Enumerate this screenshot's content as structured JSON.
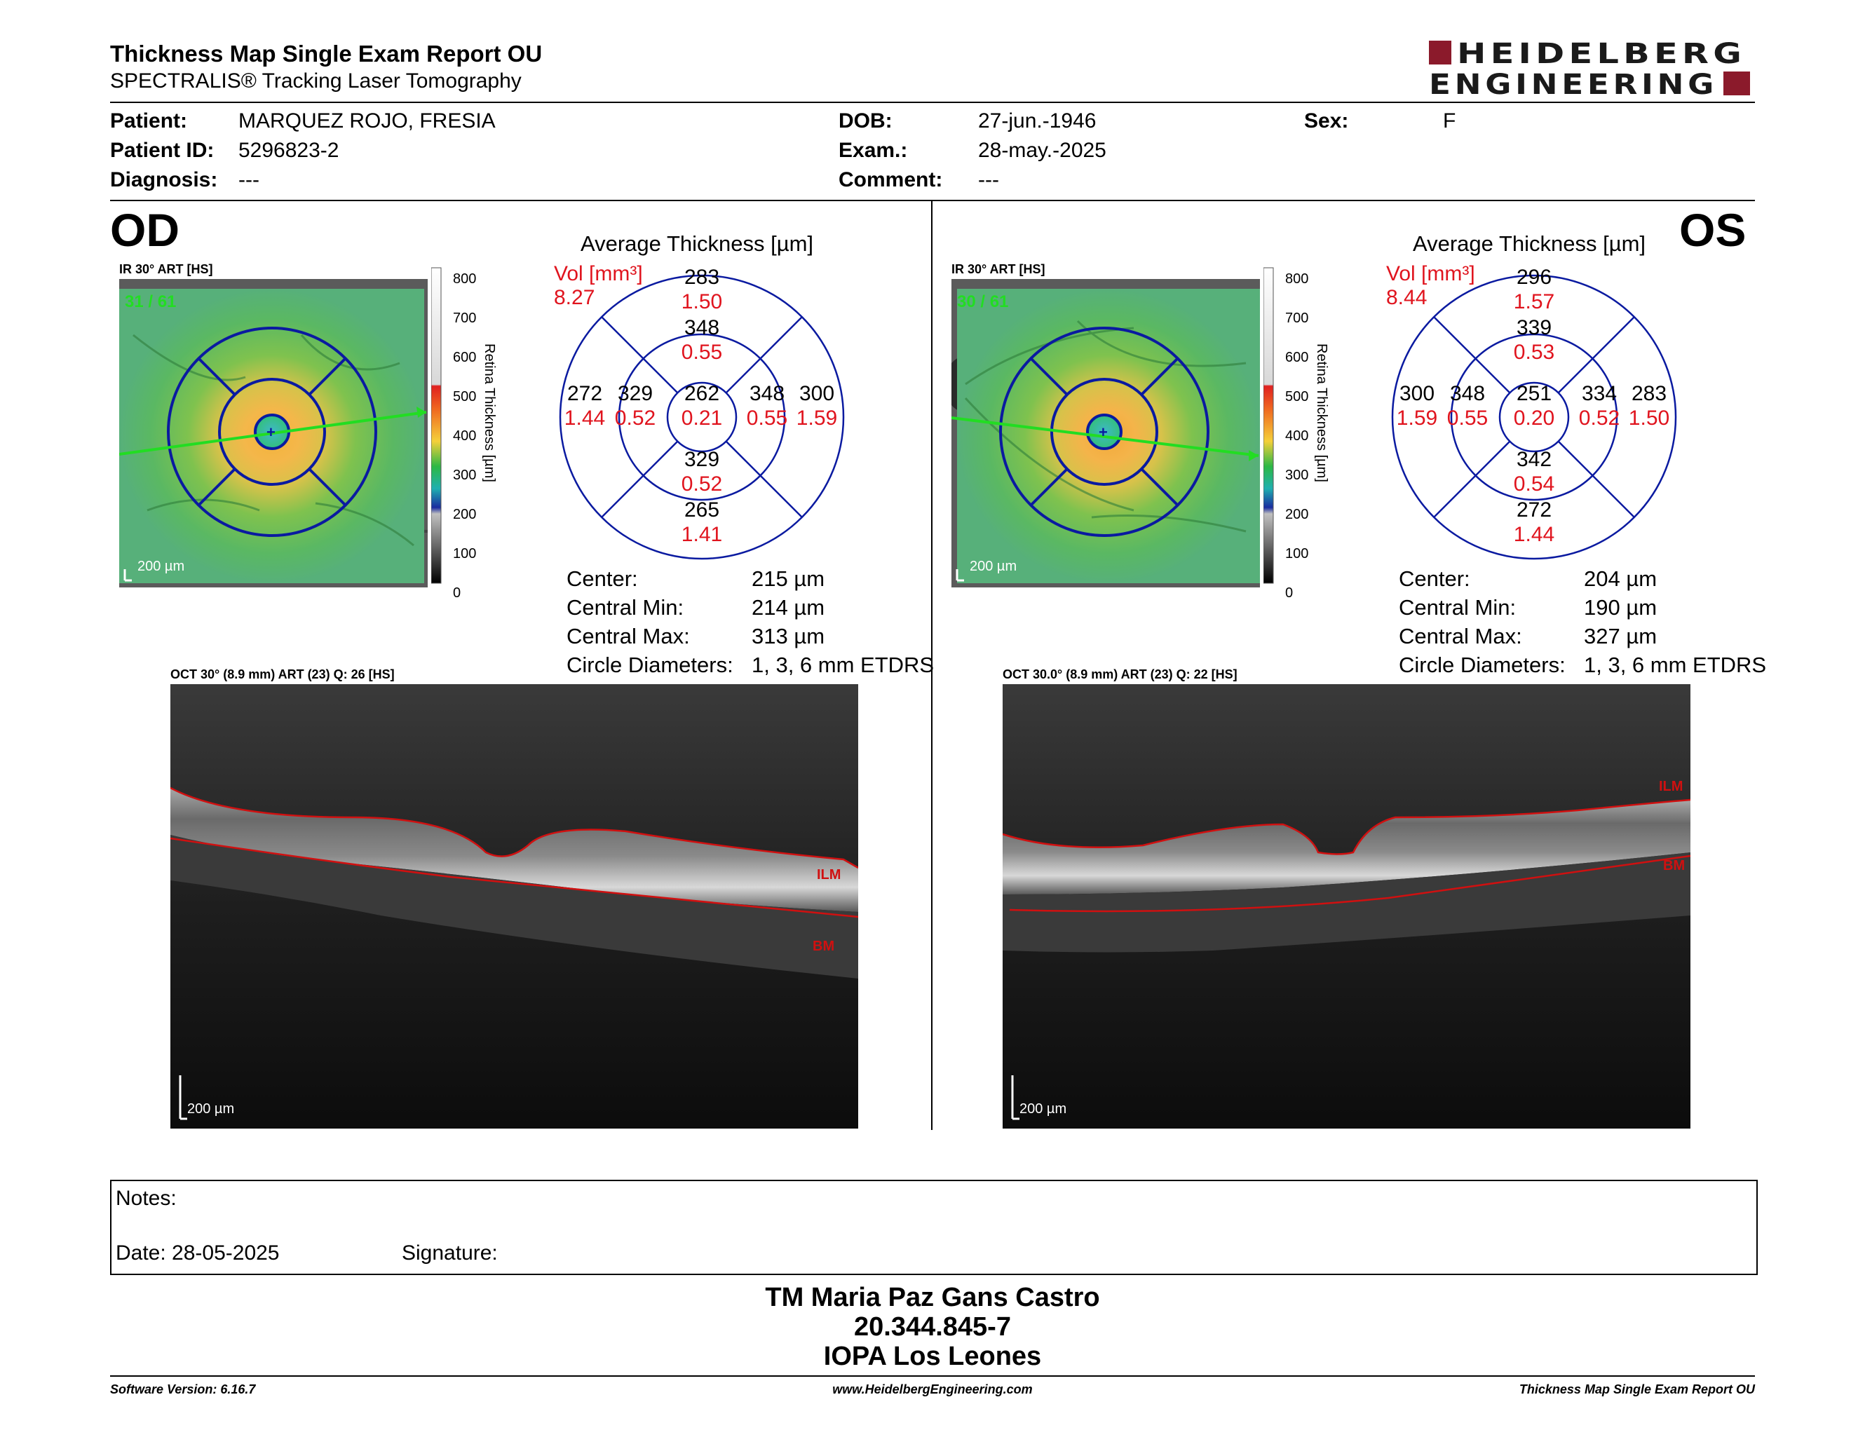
{
  "header": {
    "title": "Thickness Map Single Exam Report OU",
    "subtitle": "SPECTRALIS® Tracking Laser Tomography",
    "logo_line1": "HEIDELBERG",
    "logo_line2": "ENGINEERING",
    "logo_color": "#8b1a2b"
  },
  "patient": {
    "patient_label": "Patient:",
    "patient_value": "MARQUEZ ROJO, FRESIA",
    "id_label": "Patient ID:",
    "id_value": "5296823-2",
    "diagnosis_label": "Diagnosis:",
    "diagnosis_value": "---",
    "dob_label": "DOB:",
    "dob_value": "27-jun.-1946",
    "exam_label": "Exam.:",
    "exam_value": "28-may.-2025",
    "comment_label": "Comment:",
    "comment_value": "---",
    "sex_label": "Sex:",
    "sex_value": "F"
  },
  "colorbar": {
    "ticks": [
      "800",
      "700",
      "600",
      "500",
      "400",
      "300",
      "200",
      "100",
      "0"
    ],
    "label": "Retina Thickness [µm]"
  },
  "od": {
    "eye": "OD",
    "ir_label": "IR 30° ART [HS]",
    "frame_label": "31 / 61",
    "scale_label": "200 µm",
    "avg_title": "Average Thickness [µm]",
    "vol_label": "Vol [mm³]",
    "vol_value": "8.27",
    "etdrs": {
      "outer_sup": "283",
      "outer_sup_v": "1.50",
      "inner_sup": "348",
      "inner_sup_v": "0.55",
      "outer_left": "272",
      "outer_left_v": "1.44",
      "inner_left": "329",
      "inner_left_v": "0.52",
      "center": "262",
      "center_v": "0.21",
      "inner_right": "348",
      "inner_right_v": "0.55",
      "outer_right": "300",
      "outer_right_v": "1.59",
      "inner_inf": "329",
      "inner_inf_v": "0.52",
      "outer_inf": "265",
      "outer_inf_v": "1.41"
    },
    "stats": {
      "center_label": "Center:",
      "center_value": "215 µm",
      "min_label": "Central Min:",
      "min_value": "214 µm",
      "max_label": "Central Max:",
      "max_value": "313 µm",
      "diam_label": "Circle Diameters:",
      "diam_value": "1, 3, 6 mm ETDRS"
    },
    "oct_label": "OCT 30° (8.9 mm) ART (23) Q: 26 [HS]",
    "oct_ilm": "ILM",
    "oct_bm": "BM",
    "oct_scale": "200 µm"
  },
  "os": {
    "eye": "OS",
    "ir_label": "IR 30° ART [HS]",
    "frame_label": "30 / 61",
    "scale_label": "200 µm",
    "avg_title": "Average Thickness [µm]",
    "vol_label": "Vol [mm³]",
    "vol_value": "8.44",
    "etdrs": {
      "outer_sup": "296",
      "outer_sup_v": "1.57",
      "inner_sup": "339",
      "inner_sup_v": "0.53",
      "outer_left": "300",
      "outer_left_v": "1.59",
      "inner_left": "348",
      "inner_left_v": "0.55",
      "center": "251",
      "center_v": "0.20",
      "inner_right": "334",
      "inner_right_v": "0.52",
      "outer_right": "283",
      "outer_right_v": "1.50",
      "inner_inf": "342",
      "inner_inf_v": "0.54",
      "outer_inf": "272",
      "outer_inf_v": "1.44"
    },
    "stats": {
      "center_label": "Center:",
      "center_value": "204 µm",
      "min_label": "Central Min:",
      "min_value": "190 µm",
      "max_label": "Central Max:",
      "max_value": "327 µm",
      "diam_label": "Circle Diameters:",
      "diam_value": "1, 3, 6 mm ETDRS"
    },
    "oct_label": "OCT 30.0° (8.9 mm) ART (23) Q: 22 [HS]",
    "oct_ilm": "ILM",
    "oct_bm": "BM",
    "oct_scale": "200 µm"
  },
  "notes": {
    "notes_label": "Notes:",
    "date_label": "Date: 28-05-2025",
    "signature_label": "Signature:"
  },
  "signer": {
    "name": "TM Maria Paz Gans Castro",
    "id": "20.344.845-7",
    "org": "IOPA Los Leones"
  },
  "footer": {
    "software": "Software Version: 6.16.7",
    "website": "www.HeidelbergEngineering.com",
    "report": "Thickness Map Single Exam Report OU"
  },
  "colors": {
    "red_value": "#e0141e",
    "grid_blue": "#0a1aa0",
    "ilm_red": "#d01010",
    "scan_green": "#22dd22"
  }
}
